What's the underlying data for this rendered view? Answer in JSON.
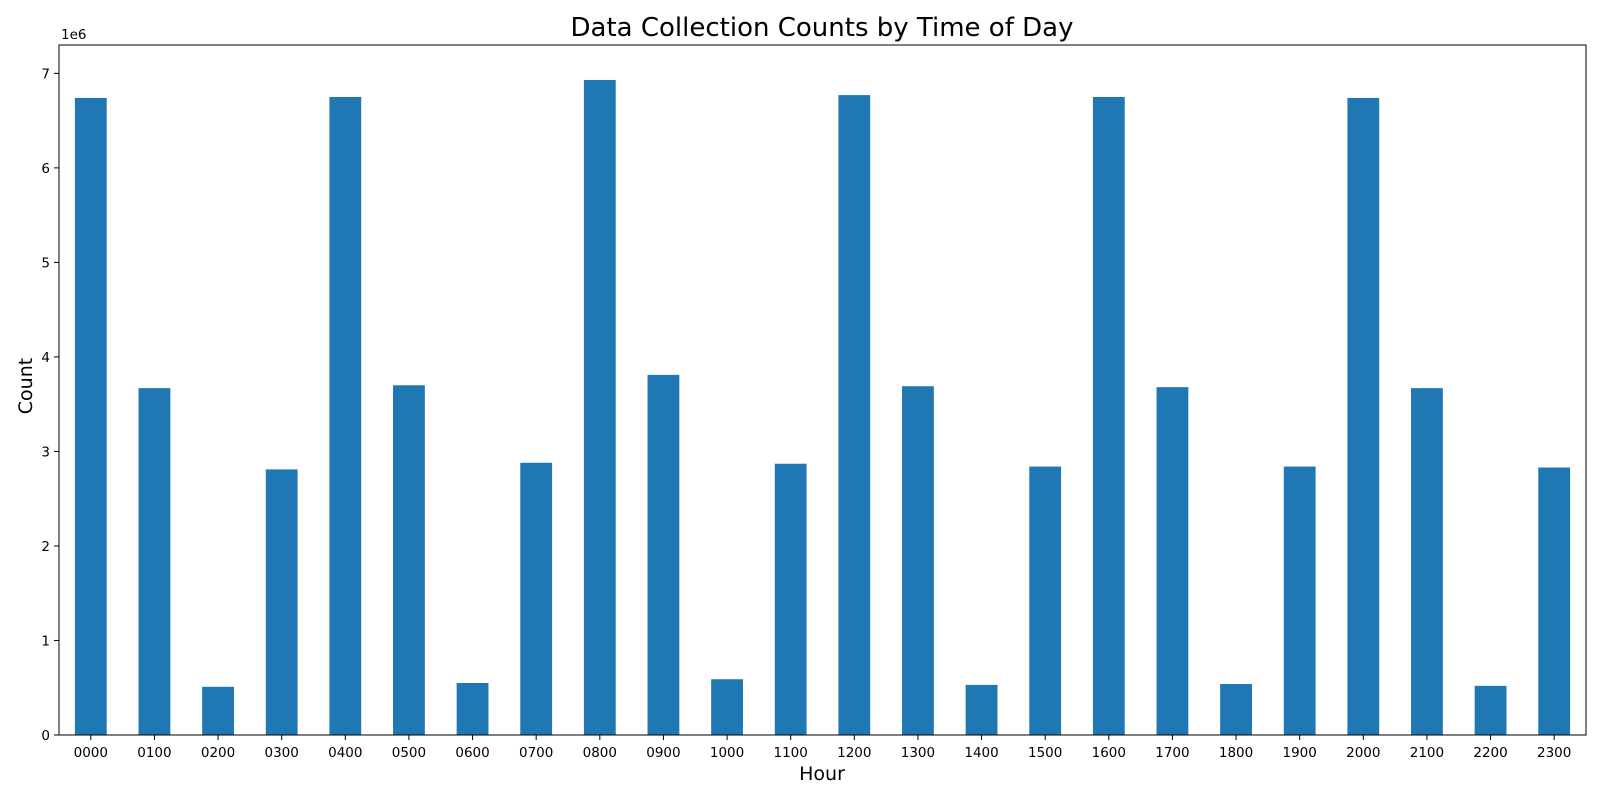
{
  "chart_data": {
    "type": "bar",
    "title": "Data Collection Counts by Time of Day",
    "xlabel": "Hour",
    "ylabel": "Count",
    "y_offset_label": "1e6",
    "y_scale": 1000000,
    "ylim": [
      0,
      7300000
    ],
    "yticks": [
      0,
      1,
      2,
      3,
      4,
      5,
      6,
      7
    ],
    "grid": false,
    "legend": "none",
    "bar_color": "#1f77b4",
    "categories": [
      "0000",
      "0100",
      "0200",
      "0300",
      "0400",
      "0500",
      "0600",
      "0700",
      "0800",
      "0900",
      "1000",
      "1100",
      "1200",
      "1300",
      "1400",
      "1500",
      "1600",
      "1700",
      "1800",
      "1900",
      "2000",
      "2100",
      "2200",
      "2300"
    ],
    "values": [
      6740000,
      3670000,
      510000,
      2810000,
      6750000,
      3700000,
      550000,
      2880000,
      6930000,
      3810000,
      590000,
      2870000,
      6770000,
      3690000,
      530000,
      2840000,
      6750000,
      3680000,
      540000,
      2840000,
      6740000,
      3670000,
      520000,
      2830000
    ]
  }
}
